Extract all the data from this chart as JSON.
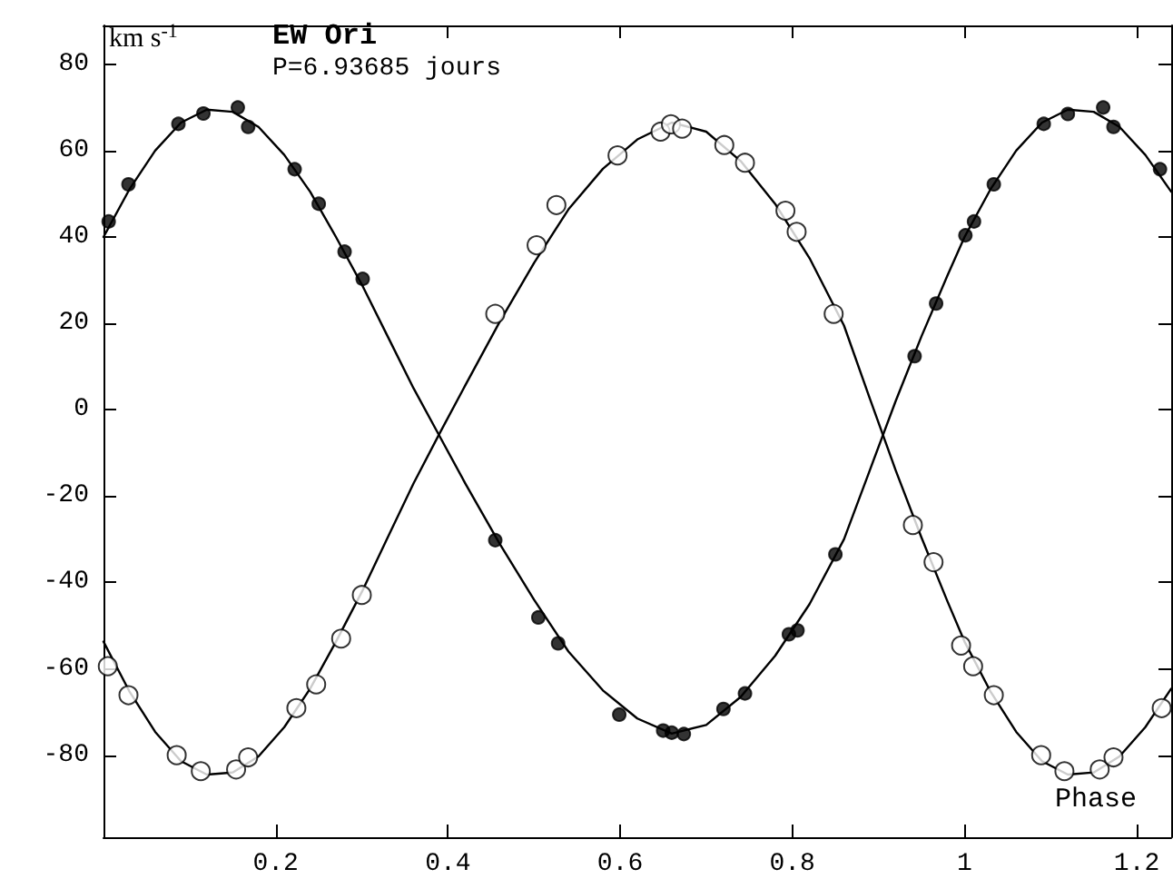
{
  "chart_data": {
    "type": "scatter",
    "title": "EW Ori",
    "subtitle": "P=6.93685 jours",
    "xlabel": "Phase",
    "ylabel": "km s$^{-1}$",
    "xlim": [
      0,
      1.24
    ],
    "xticks": [
      0.2,
      0.4,
      0.6,
      0.8,
      1,
      1.2
    ],
    "ylim": [
      -99,
      89
    ],
    "yticks": [
      -80,
      -60,
      -40,
      -20,
      0,
      20,
      40,
      60,
      80
    ],
    "grid": false,
    "marker": "circle",
    "series": [
      {
        "type": "line",
        "color": "#000000",
        "marker": "none",
        "line_style": "solid",
        "x": [
          0,
          0.03,
          0.06,
          0.09,
          0.12,
          0.15,
          0.18,
          0.21,
          0.24,
          0.27,
          0.3,
          0.33,
          0.36,
          0.39,
          0.42,
          0.46,
          0.5,
          0.54,
          0.58,
          0.62,
          0.66,
          0.7,
          0.74,
          0.78,
          0.82,
          0.86,
          0.89,
          0.92,
          0.95,
          0.98,
          1,
          1.03,
          1.06,
          1.09,
          1.12,
          1.15,
          1.18,
          1.21,
          1.24
        ],
        "values": [
          40,
          51,
          60,
          66.5,
          69.5,
          69,
          65.5,
          59,
          50.5,
          40,
          29,
          17,
          5,
          -6,
          -17,
          -31,
          -44,
          -56,
          -65,
          -71.5,
          -75,
          -73,
          -66.5,
          -57,
          -45,
          -30,
          -14,
          2,
          17,
          31,
          40,
          51,
          60,
          66.5,
          69.5,
          69,
          65.5,
          59,
          50.5
        ]
      },
      {
        "type": "line",
        "color": "#000000",
        "marker": "none",
        "line_style": "solid",
        "x": [
          0,
          0.03,
          0.06,
          0.09,
          0.12,
          0.15,
          0.18,
          0.21,
          0.24,
          0.27,
          0.3,
          0.33,
          0.36,
          0.39,
          0.42,
          0.46,
          0.5,
          0.54,
          0.58,
          0.62,
          0.66,
          0.7,
          0.74,
          0.78,
          0.82,
          0.86,
          0.89,
          0.92,
          0.95,
          0.98,
          1,
          1.03,
          1.06,
          1.09,
          1.12,
          1.15,
          1.18,
          1.21,
          1.24
        ],
        "values": [
          -53.7,
          -65.2,
          -74.6,
          -81.4,
          -84.5,
          -84,
          -80.3,
          -73.5,
          -64.6,
          -53.7,
          -42.2,
          -29.6,
          -17.1,
          -5.6,
          5.6,
          20.3,
          34,
          46.4,
          55.8,
          62.6,
          66.5,
          64.4,
          57.6,
          47.7,
          35.1,
          19.5,
          2.6,
          -14,
          -29.6,
          -44.3,
          -53.7,
          -65.2,
          -74.6,
          -81.4,
          -84.5,
          -84,
          -80.3,
          -73.5,
          -64.6
        ]
      },
      {
        "color": "#000000",
        "x": [
          0.006,
          0.029,
          0.087,
          0.116,
          0.156,
          0.168,
          0.222,
          0.25,
          0.28,
          0.301,
          0.455,
          0.505,
          0.528,
          0.599,
          0.65,
          0.66,
          0.674,
          0.72,
          0.745,
          0.796,
          0.806,
          0.85,
          0.942,
          0.967,
          1.001,
          1.011,
          1.034,
          1.092,
          1.12,
          1.161,
          1.173,
          1.227
        ],
        "values": [
          43.6,
          52.2,
          66.2,
          68.6,
          70,
          65.5,
          55.7,
          47.7,
          36.6,
          30.3,
          -30.2,
          -48.1,
          -54.1,
          -70.6,
          -74.3,
          -74.8,
          -75.1,
          -69.3,
          -65.7,
          -52,
          -51.1,
          -33.5,
          12.4,
          24.6,
          40.4,
          43.6,
          52.2,
          66.2,
          68.5,
          70,
          65.5,
          55.7
        ]
      },
      {
        "color": "#ffffff",
        "x": [
          0.005,
          0.029,
          0.085,
          0.113,
          0.154,
          0.168,
          0.224,
          0.247,
          0.276,
          0.3,
          0.455,
          0.503,
          0.526,
          0.597,
          0.647,
          0.659,
          0.672,
          0.721,
          0.745,
          0.792,
          0.805,
          0.848,
          0.94,
          0.964,
          0.996,
          1.01,
          1.034,
          1.089,
          1.116,
          1.157,
          1.173,
          1.229
        ],
        "values": [
          -59.4,
          -66.1,
          -80,
          -83.7,
          -83.3,
          -80.5,
          -69.1,
          -63.6,
          -53,
          -42.9,
          22.2,
          38.1,
          47.4,
          58.9,
          64.4,
          66.1,
          65.1,
          61.3,
          57.2,
          46.1,
          41.2,
          22.2,
          -26.7,
          -35.3,
          -54.6,
          -59.4,
          -66.1,
          -80,
          -83.7,
          -83.3,
          -80.5,
          -69.1
        ]
      }
    ]
  }
}
